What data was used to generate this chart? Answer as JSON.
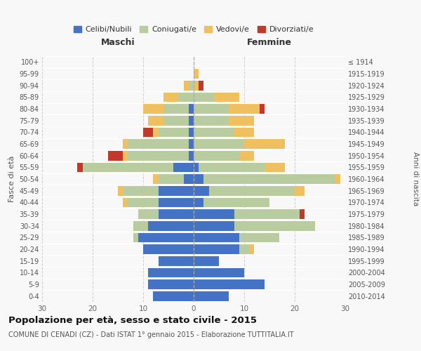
{
  "age_groups": [
    "0-4",
    "5-9",
    "10-14",
    "15-19",
    "20-24",
    "25-29",
    "30-34",
    "35-39",
    "40-44",
    "45-49",
    "50-54",
    "55-59",
    "60-64",
    "65-69",
    "70-74",
    "75-79",
    "80-84",
    "85-89",
    "90-94",
    "95-99",
    "100+"
  ],
  "birth_years": [
    "2010-2014",
    "2005-2009",
    "2000-2004",
    "1995-1999",
    "1990-1994",
    "1985-1989",
    "1980-1984",
    "1975-1979",
    "1970-1974",
    "1965-1969",
    "1960-1964",
    "1955-1959",
    "1950-1954",
    "1945-1949",
    "1940-1944",
    "1935-1939",
    "1930-1934",
    "1925-1929",
    "1920-1924",
    "1915-1919",
    "≤ 1914"
  ],
  "male_celibi": [
    8,
    9,
    9,
    7,
    10,
    11,
    9,
    7,
    7,
    7,
    2,
    4,
    1,
    1,
    1,
    1,
    1,
    0,
    0,
    0,
    0
  ],
  "male_coniugati": [
    0,
    0,
    0,
    0,
    0,
    1,
    3,
    4,
    6,
    7,
    5,
    18,
    12,
    12,
    6,
    5,
    5,
    3,
    1,
    0,
    0
  ],
  "male_vedovi": [
    0,
    0,
    0,
    0,
    0,
    0,
    0,
    0,
    1,
    1,
    1,
    0,
    1,
    1,
    1,
    3,
    4,
    3,
    1,
    0,
    0
  ],
  "male_divorziati": [
    0,
    0,
    0,
    0,
    0,
    0,
    0,
    0,
    0,
    0,
    0,
    1,
    3,
    0,
    2,
    0,
    0,
    0,
    0,
    0,
    0
  ],
  "female_celibi": [
    7,
    14,
    10,
    5,
    9,
    9,
    8,
    8,
    2,
    3,
    2,
    1,
    0,
    0,
    0,
    0,
    0,
    0,
    0,
    0,
    0
  ],
  "female_coniugati": [
    0,
    0,
    0,
    0,
    2,
    8,
    16,
    13,
    13,
    17,
    26,
    13,
    9,
    10,
    8,
    7,
    7,
    4,
    0,
    0,
    0
  ],
  "female_vedovi": [
    0,
    0,
    0,
    0,
    1,
    0,
    0,
    0,
    0,
    2,
    1,
    4,
    3,
    8,
    4,
    5,
    6,
    5,
    1,
    1,
    0
  ],
  "female_divorziati": [
    0,
    0,
    0,
    0,
    0,
    0,
    0,
    1,
    0,
    0,
    0,
    0,
    0,
    0,
    0,
    0,
    1,
    0,
    1,
    0,
    0
  ],
  "color_celibi": "#4472c4",
  "color_coniugati": "#b8cca0",
  "color_vedovi": "#f0c060",
  "color_divorziati": "#c0392b",
  "xlim": 30,
  "title": "Popolazione per età, sesso e stato civile - 2015",
  "subtitle": "COMUNE DI CENADI (CZ) - Dati ISTAT 1° gennaio 2015 - Elaborazione TUTTITALIA.IT",
  "ylabel_left": "Fasce di età",
  "ylabel_right": "Anni di nascita",
  "label_maschi": "Maschi",
  "label_femmine": "Femmine",
  "legend_labels": [
    "Celibi/Nubili",
    "Coniugati/e",
    "Vedovi/e",
    "Divorziati/e"
  ],
  "background_color": "#f8f8f8"
}
